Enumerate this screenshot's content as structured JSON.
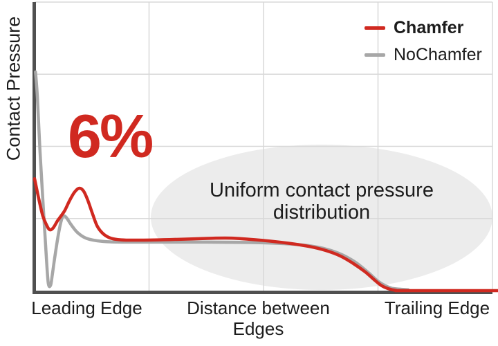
{
  "chart_data": {
    "type": "line",
    "title": "",
    "ylabel": "Contact Pressure",
    "xlabel": "Distance between Edges",
    "x_axis_labels": {
      "left": "Leading Edge",
      "center": "Distance between Edges",
      "right": "Trailing Edge"
    },
    "x_ticks": [],
    "y_ticks": [],
    "grid": true,
    "legend_position": "top-right",
    "xlim": [
      0,
      1
    ],
    "ylim": [
      0,
      1
    ],
    "series": [
      {
        "name": "Chamfer",
        "color": "#d02920",
        "points": [
          [
            0.0,
            0.388
          ],
          [
            0.009,
            0.319
          ],
          [
            0.018,
            0.259
          ],
          [
            0.026,
            0.228
          ],
          [
            0.033,
            0.211
          ],
          [
            0.041,
            0.218
          ],
          [
            0.05,
            0.242
          ],
          [
            0.057,
            0.257
          ],
          [
            0.066,
            0.278
          ],
          [
            0.077,
            0.314
          ],
          [
            0.088,
            0.343
          ],
          [
            0.098,
            0.355
          ],
          [
            0.107,
            0.345
          ],
          [
            0.116,
            0.314
          ],
          [
            0.127,
            0.264
          ],
          [
            0.137,
            0.223
          ],
          [
            0.15,
            0.197
          ],
          [
            0.166,
            0.182
          ],
          [
            0.189,
            0.176
          ],
          [
            0.227,
            0.175
          ],
          [
            0.295,
            0.177
          ],
          [
            0.378,
            0.181
          ],
          [
            0.43,
            0.182
          ],
          [
            0.498,
            0.174
          ],
          [
            0.556,
            0.164
          ],
          [
            0.6,
            0.153
          ],
          [
            0.636,
            0.139
          ],
          [
            0.668,
            0.12
          ],
          [
            0.696,
            0.094
          ],
          [
            0.722,
            0.065
          ],
          [
            0.743,
            0.036
          ],
          [
            0.758,
            0.017
          ],
          [
            0.772,
            0.007
          ],
          [
            0.789,
            0.001
          ],
          [
            0.81,
            0.0
          ],
          [
            1.012,
            0.0
          ]
        ]
      },
      {
        "name": "NoChamfer",
        "color": "#a7a7a7",
        "points": [
          [
            0.002,
            0.758
          ],
          [
            0.006,
            0.672
          ],
          [
            0.012,
            0.48
          ],
          [
            0.02,
            0.264
          ],
          [
            0.026,
            0.108
          ],
          [
            0.03,
            0.024
          ],
          [
            0.035,
            0.019
          ],
          [
            0.039,
            0.058
          ],
          [
            0.045,
            0.125
          ],
          [
            0.053,
            0.204
          ],
          [
            0.059,
            0.247
          ],
          [
            0.063,
            0.259
          ],
          [
            0.069,
            0.254
          ],
          [
            0.08,
            0.228
          ],
          [
            0.094,
            0.201
          ],
          [
            0.112,
            0.182
          ],
          [
            0.136,
            0.173
          ],
          [
            0.166,
            0.169
          ],
          [
            0.211,
            0.168
          ],
          [
            0.287,
            0.168
          ],
          [
            0.378,
            0.168
          ],
          [
            0.468,
            0.167
          ],
          [
            0.544,
            0.163
          ],
          [
            0.597,
            0.156
          ],
          [
            0.637,
            0.144
          ],
          [
            0.671,
            0.125
          ],
          [
            0.701,
            0.098
          ],
          [
            0.727,
            0.065
          ],
          [
            0.749,
            0.034
          ],
          [
            0.766,
            0.017
          ],
          [
            0.781,
            0.008
          ],
          [
            0.798,
            0.005
          ],
          [
            0.816,
            0.003
          ]
        ]
      }
    ],
    "annotations": {
      "percent_label": "6%",
      "region_label": "Uniform contact pressure distribution"
    }
  },
  "colors": {
    "chamfer_red": "#d02920",
    "nochamfer_gray": "#a7a7a7",
    "axis": "#505050",
    "gridline": "#d8d8d8",
    "ellipse_fill": "#ececec",
    "text": "#1c1c1c"
  }
}
